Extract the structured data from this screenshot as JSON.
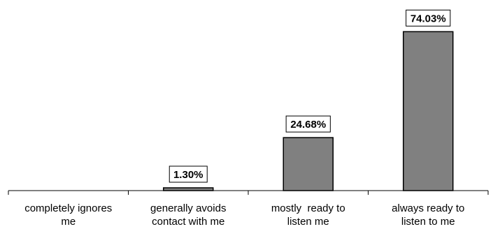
{
  "chart_data": {
    "type": "bar",
    "categories": [
      [
        "completely ignores",
        "me"
      ],
      [
        "generally avoids",
        "contact with me"
      ],
      [
        "mostly  ready to",
        "listen me"
      ],
      [
        "always ready to",
        "listen to me"
      ]
    ],
    "values": [
      0.0,
      1.3,
      24.68,
      74.03
    ],
    "data_labels": [
      "",
      "1.30%",
      "24.68%",
      "74.03%"
    ],
    "ylim": [
      0,
      80
    ],
    "grid": false,
    "legend": "none",
    "bar_color": "#808080",
    "bar_edge_color": "#000000"
  }
}
